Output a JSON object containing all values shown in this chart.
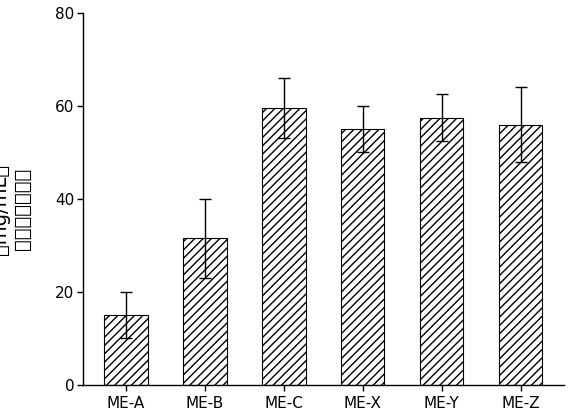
{
  "categories": [
    "ME-A",
    "ME-B",
    "ME-C",
    "ME-X",
    "ME-Y",
    "ME-Z"
  ],
  "values": [
    15.0,
    31.5,
    59.5,
    55.0,
    57.5,
    56.0
  ],
  "errors": [
    5.0,
    8.5,
    6.5,
    5.0,
    5.0,
    8.0
  ],
  "hatch_pattern": "////",
  "ylabel_chinese": "布洛芬的溶解度",
  "ylabel_unit": "（mg/mL）",
  "ylim": [
    0,
    80
  ],
  "yticks": [
    0,
    20,
    40,
    60,
    80
  ],
  "bar_width": 0.55,
  "background_color": "#ffffff",
  "edge_color": "#000000",
  "error_color": "#000000",
  "tick_fontsize": 11,
  "ylabel_fontsize": 14,
  "xlabel_fontsize": 11
}
